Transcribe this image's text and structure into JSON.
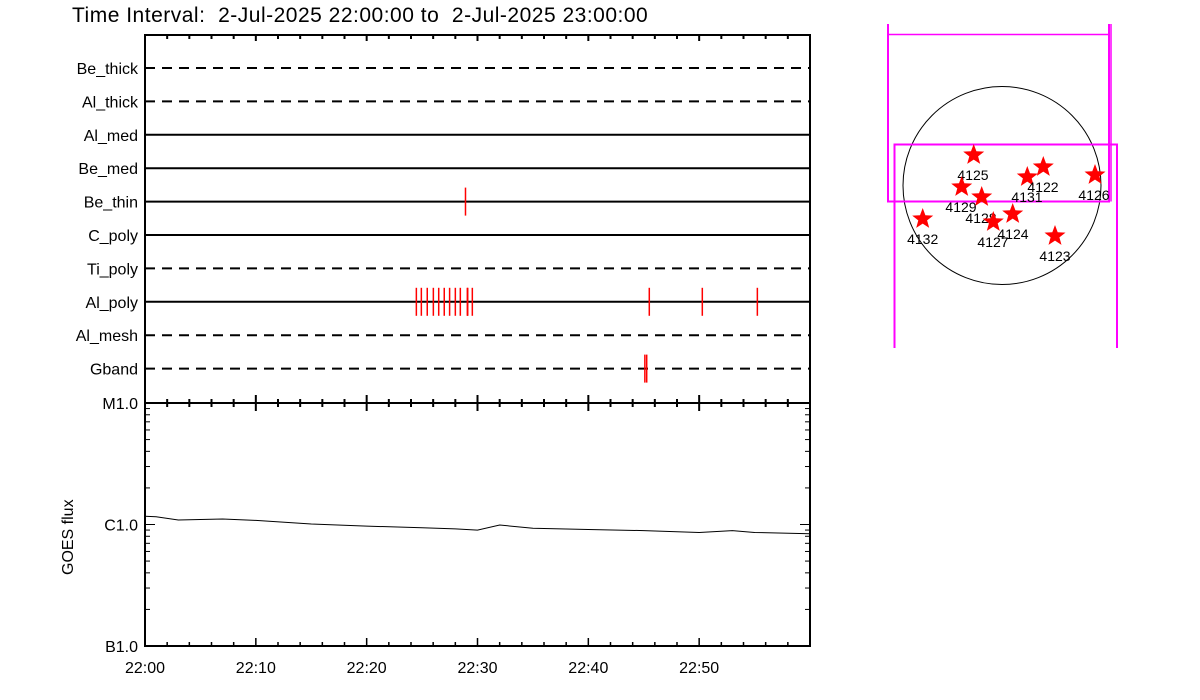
{
  "chart_data": [
    {
      "type": "timeline",
      "title": "Time Interval:  2-Jul-2025 22:00:00 to  2-Jul-2025 23:00:00",
      "xlim": [
        "22:00",
        "23:00"
      ],
      "rows": [
        {
          "label": "Be_thick",
          "style": "dashed",
          "events": []
        },
        {
          "label": "Al_thick",
          "style": "dashed",
          "events": []
        },
        {
          "label": "Al_med",
          "style": "solid",
          "events": []
        },
        {
          "label": "Be_med",
          "style": "solid",
          "events": []
        },
        {
          "label": "Be_thin",
          "style": "solid",
          "events": [
            "22:28:55"
          ]
        },
        {
          "label": "C_poly",
          "style": "solid",
          "events": []
        },
        {
          "label": "Ti_poly",
          "style": "dashed",
          "events": []
        },
        {
          "label": "Al_poly",
          "style": "solid",
          "events": [
            "22:24:29",
            "22:24:56",
            "22:25:28",
            "22:26:01",
            "22:26:30",
            "22:27:00",
            "22:27:29",
            "22:28:00",
            "22:28:27",
            "22:29:05",
            "22:29:07",
            "22:29:32",
            "22:45:30",
            "22:50:17",
            "22:55:15"
          ]
        },
        {
          "label": "Al_mesh",
          "style": "dashed",
          "events": []
        },
        {
          "label": "Gband",
          "style": "dashed",
          "events": [
            "22:45:06",
            "22:45:16"
          ]
        }
      ],
      "event_color": "#ff0000"
    },
    {
      "type": "line",
      "ylabel": "GOES flux",
      "yscale": "log",
      "ylim": [
        1e-07,
        1e-05
      ],
      "yticks": [
        {
          "value": 1e-05,
          "label": "M1.0"
        },
        {
          "value": 1e-06,
          "label": "C1.0"
        },
        {
          "value": 1e-07,
          "label": "B1.0"
        }
      ],
      "xticks": [
        "22:00",
        "22:10",
        "22:20",
        "22:30",
        "22:40",
        "22:50"
      ],
      "xlim": [
        "22:00",
        "23:00"
      ],
      "x": [
        "22:00",
        "22:01",
        "22:03",
        "22:07",
        "22:10",
        "22:15",
        "22:20",
        "22:25",
        "22:28",
        "22:30",
        "22:32",
        "22:35",
        "22:40",
        "22:45",
        "22:50",
        "22:53",
        "22:55",
        "23:00"
      ],
      "y": [
        1.17e-06,
        1.16e-06,
        1.09e-06,
        1.11e-06,
        1.08e-06,
        1.01e-06,
        9.7e-07,
        9.4e-07,
        9.2e-07,
        9e-07,
        9.9e-07,
        9.3e-07,
        9.1e-07,
        8.9e-07,
        8.6e-07,
        8.9e-07,
        8.6e-07,
        8.4e-07
      ]
    },
    {
      "type": "map",
      "active_regions": [
        "4125",
        "4129",
        "4128",
        "4127",
        "4124",
        "4131",
        "4122",
        "4126",
        "4132",
        "4123"
      ],
      "marker_color": "#ff0000",
      "fov_color": "#ff00ff"
    }
  ]
}
